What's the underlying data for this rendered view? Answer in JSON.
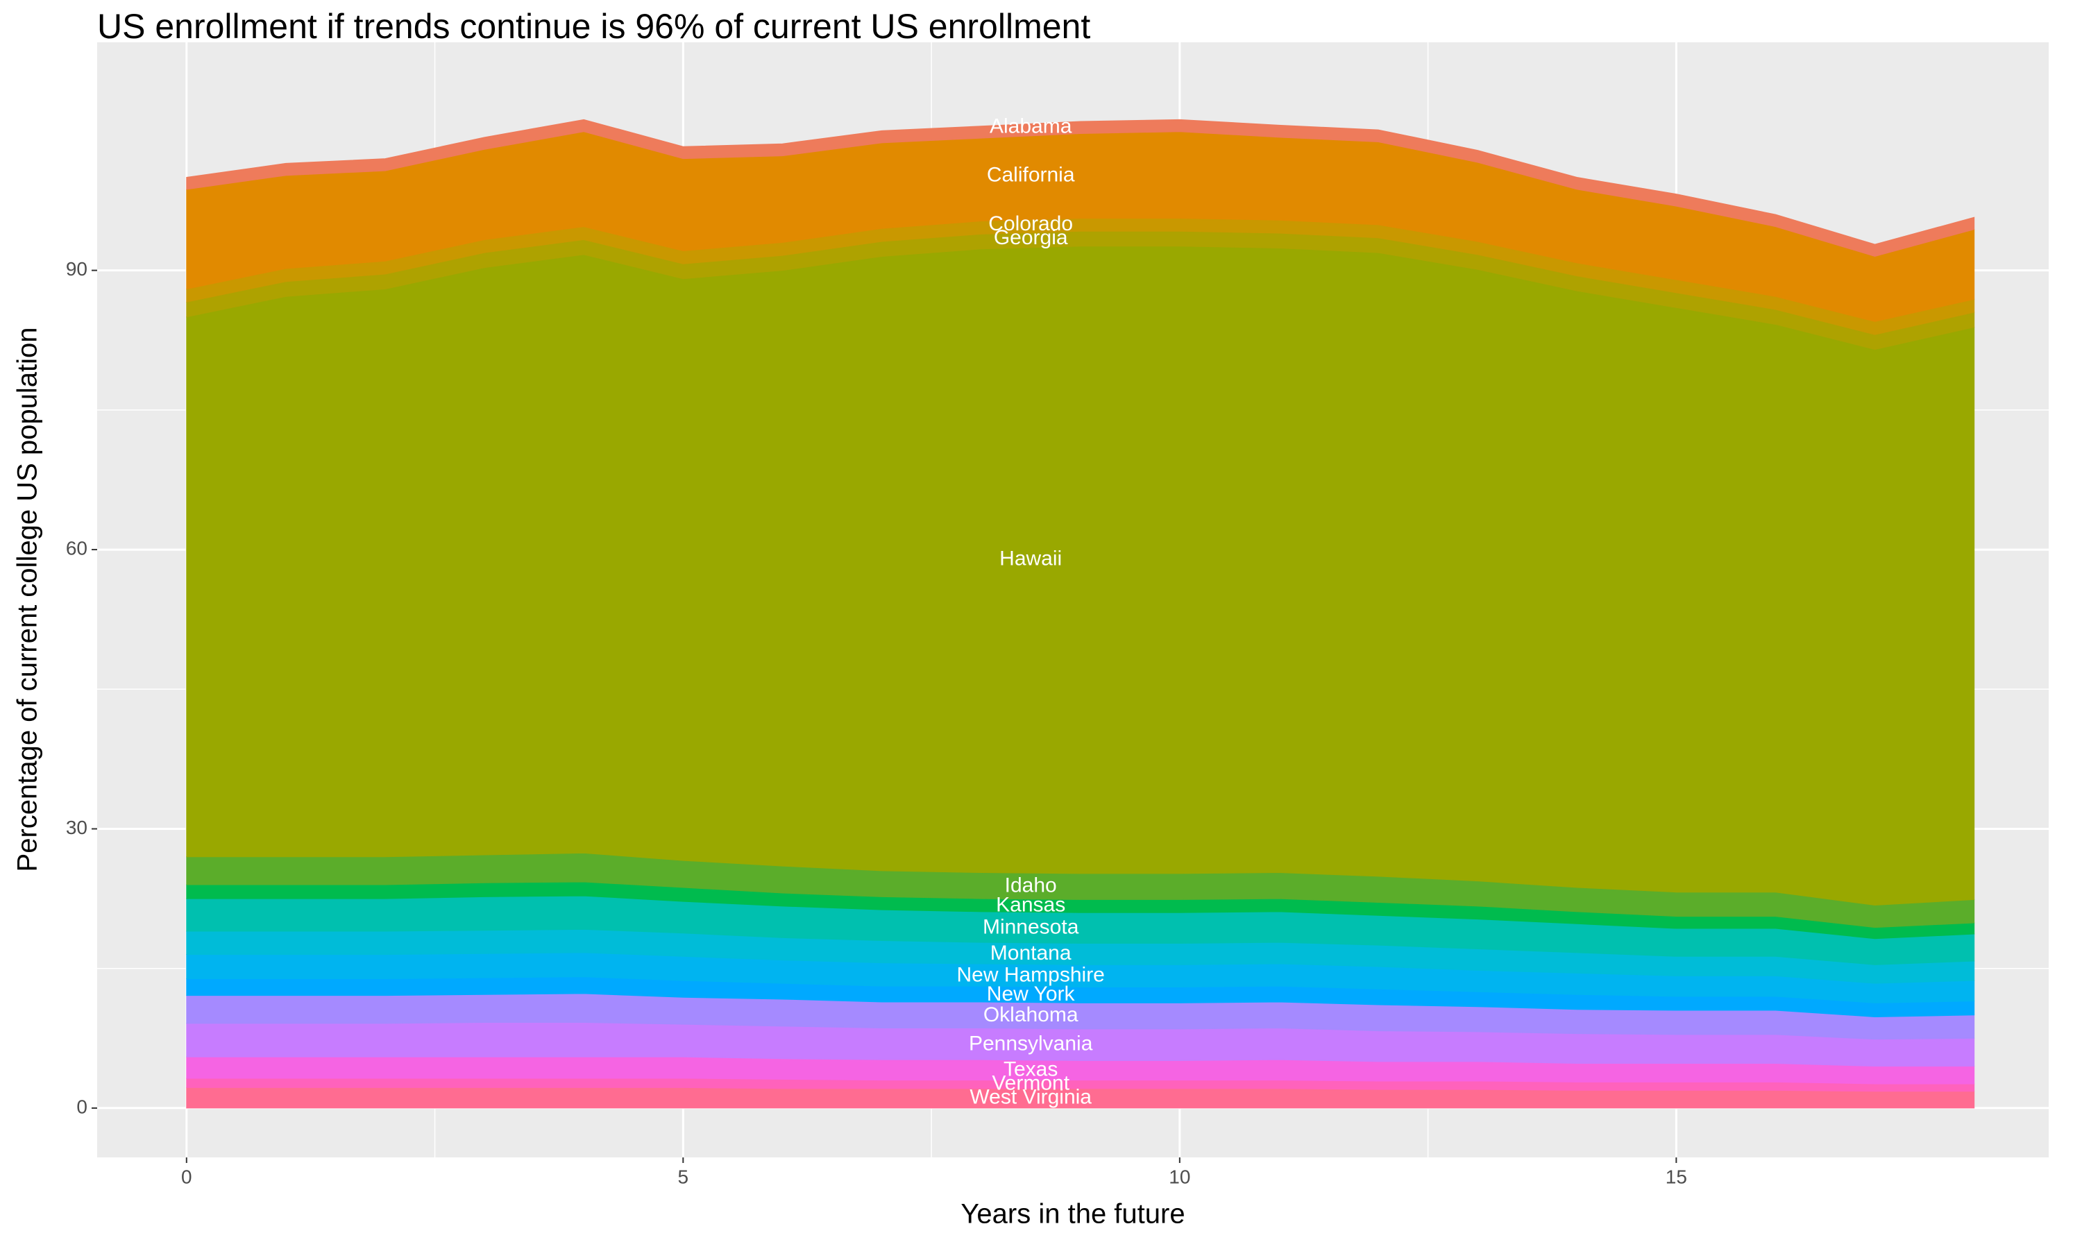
{
  "chart_data": {
    "type": "stacked_area",
    "title": "US enrollment if trends continue is 96% of current US enrollment",
    "x_label": "Years in the future",
    "y_label": "Percentage of current college US population",
    "x": [
      0,
      1,
      2,
      3,
      4,
      5,
      6,
      7,
      8,
      9,
      10,
      11,
      12,
      13,
      14,
      15,
      16,
      17,
      18
    ],
    "xlim": [
      -0.9,
      18.75
    ],
    "xticks": [
      0,
      5,
      10,
      15
    ],
    "ylim": [
      -5.3,
      114.5
    ],
    "yticks": [
      0,
      30,
      60,
      90
    ],
    "grid": true,
    "series": [
      {
        "name": "West Virginia",
        "color": "#FF6C91",
        "values": [
          2.2,
          2.2,
          2.2,
          2.2,
          2.2,
          2.2,
          2.1,
          2.1,
          2.1,
          2.1,
          2.1,
          2.1,
          2.0,
          2.0,
          1.9,
          1.9,
          1.9,
          1.8,
          1.8
        ]
      },
      {
        "name": "Vermont",
        "color": "#FF62BC",
        "values": [
          1.0,
          1.0,
          1.0,
          1.0,
          1.0,
          1.0,
          1.0,
          0.9,
          0.9,
          0.9,
          0.9,
          0.9,
          0.9,
          0.9,
          0.9,
          0.9,
          0.9,
          0.8,
          0.8
        ]
      },
      {
        "name": "Texas",
        "color": "#F564E3",
        "values": [
          2.3,
          2.3,
          2.3,
          2.3,
          2.3,
          2.3,
          2.2,
          2.2,
          2.2,
          2.1,
          2.1,
          2.2,
          2.1,
          2.1,
          2.0,
          2.0,
          2.0,
          1.9,
          1.9
        ]
      },
      {
        "name": "Pennsylvania",
        "color": "#C77CFF",
        "values": [
          3.6,
          3.6,
          3.6,
          3.7,
          3.7,
          3.5,
          3.5,
          3.4,
          3.4,
          3.4,
          3.4,
          3.4,
          3.3,
          3.2,
          3.2,
          3.1,
          3.1,
          2.9,
          3.0
        ]
      },
      {
        "name": "Oklahoma",
        "color": "#A58AFF",
        "values": [
          3.0,
          3.0,
          3.0,
          3.0,
          3.1,
          2.9,
          2.9,
          2.8,
          2.8,
          2.8,
          2.8,
          2.8,
          2.8,
          2.7,
          2.6,
          2.6,
          2.6,
          2.4,
          2.5
        ]
      },
      {
        "name": "New York",
        "color": "#00A9FF",
        "values": [
          1.8,
          1.8,
          1.8,
          1.8,
          1.8,
          1.8,
          1.7,
          1.7,
          1.7,
          1.7,
          1.7,
          1.7,
          1.7,
          1.6,
          1.6,
          1.5,
          1.5,
          1.5,
          1.5
        ]
      },
      {
        "name": "New Hampshire",
        "color": "#00B4F0",
        "values": [
          2.6,
          2.6,
          2.6,
          2.6,
          2.6,
          2.6,
          2.5,
          2.5,
          2.4,
          2.4,
          2.4,
          2.4,
          2.4,
          2.3,
          2.3,
          2.2,
          2.2,
          2.1,
          2.2
        ]
      },
      {
        "name": "Montana",
        "color": "#00BCD8",
        "values": [
          2.5,
          2.5,
          2.5,
          2.5,
          2.5,
          2.5,
          2.4,
          2.4,
          2.3,
          2.3,
          2.3,
          2.3,
          2.3,
          2.3,
          2.2,
          2.1,
          2.1,
          2.0,
          2.1
        ]
      },
      {
        "name": "Minnesota",
        "color": "#00C0AF",
        "values": [
          3.5,
          3.5,
          3.5,
          3.6,
          3.6,
          3.4,
          3.4,
          3.3,
          3.3,
          3.3,
          3.3,
          3.3,
          3.2,
          3.2,
          3.1,
          3.0,
          3.0,
          2.8,
          2.9
        ]
      },
      {
        "name": "Kansas",
        "color": "#00BB4E",
        "values": [
          1.5,
          1.5,
          1.5,
          1.5,
          1.5,
          1.5,
          1.4,
          1.4,
          1.4,
          1.4,
          1.4,
          1.4,
          1.4,
          1.4,
          1.3,
          1.3,
          1.3,
          1.2,
          1.2
        ]
      },
      {
        "name": "Idaho",
        "color": "#5BAD2A",
        "values": [
          3.0,
          3.0,
          3.0,
          3.0,
          3.1,
          2.9,
          2.9,
          2.8,
          2.8,
          2.8,
          2.8,
          2.8,
          2.8,
          2.7,
          2.6,
          2.6,
          2.6,
          2.4,
          2.5
        ]
      },
      {
        "name": "Hawaii",
        "color": "#99A800",
        "values": [
          58,
          60.2,
          61,
          63.1,
          64.3,
          62.5,
          64,
          66,
          67,
          67.4,
          67.4,
          67.1,
          67,
          65.7,
          64.1,
          62.8,
          61,
          59.7,
          61.5
        ]
      },
      {
        "name": "Georgia",
        "color": "#AEA200",
        "values": [
          1.6,
          1.6,
          1.6,
          1.6,
          1.6,
          1.6,
          1.6,
          1.6,
          1.6,
          1.6,
          1.6,
          1.6,
          1.6,
          1.6,
          1.6,
          1.6,
          1.6,
          1.6,
          1.6
        ]
      },
      {
        "name": "Colorado",
        "color": "#C99800",
        "values": [
          1.4,
          1.4,
          1.4,
          1.4,
          1.4,
          1.4,
          1.4,
          1.4,
          1.4,
          1.4,
          1.4,
          1.4,
          1.4,
          1.4,
          1.4,
          1.4,
          1.4,
          1.4,
          1.4
        ]
      },
      {
        "name": "California",
        "color": "#E18A00",
        "values": [
          10.7,
          10.0,
          9.7,
          9.7,
          10.2,
          9.9,
          9.3,
          9.2,
          8.9,
          9.1,
          9.3,
          8.9,
          8.9,
          8.5,
          7.9,
          7.9,
          7.5,
          7.0,
          7.5
        ]
      },
      {
        "name": "Alabama",
        "color": "#EE7B5B",
        "values": [
          1.3,
          1.3,
          1.3,
          1.3,
          1.3,
          1.3,
          1.3,
          1.3,
          1.3,
          1.3,
          1.3,
          1.3,
          1.3,
          1.3,
          1.3,
          1.3,
          1.3,
          1.3,
          1.3
        ]
      }
    ]
  }
}
